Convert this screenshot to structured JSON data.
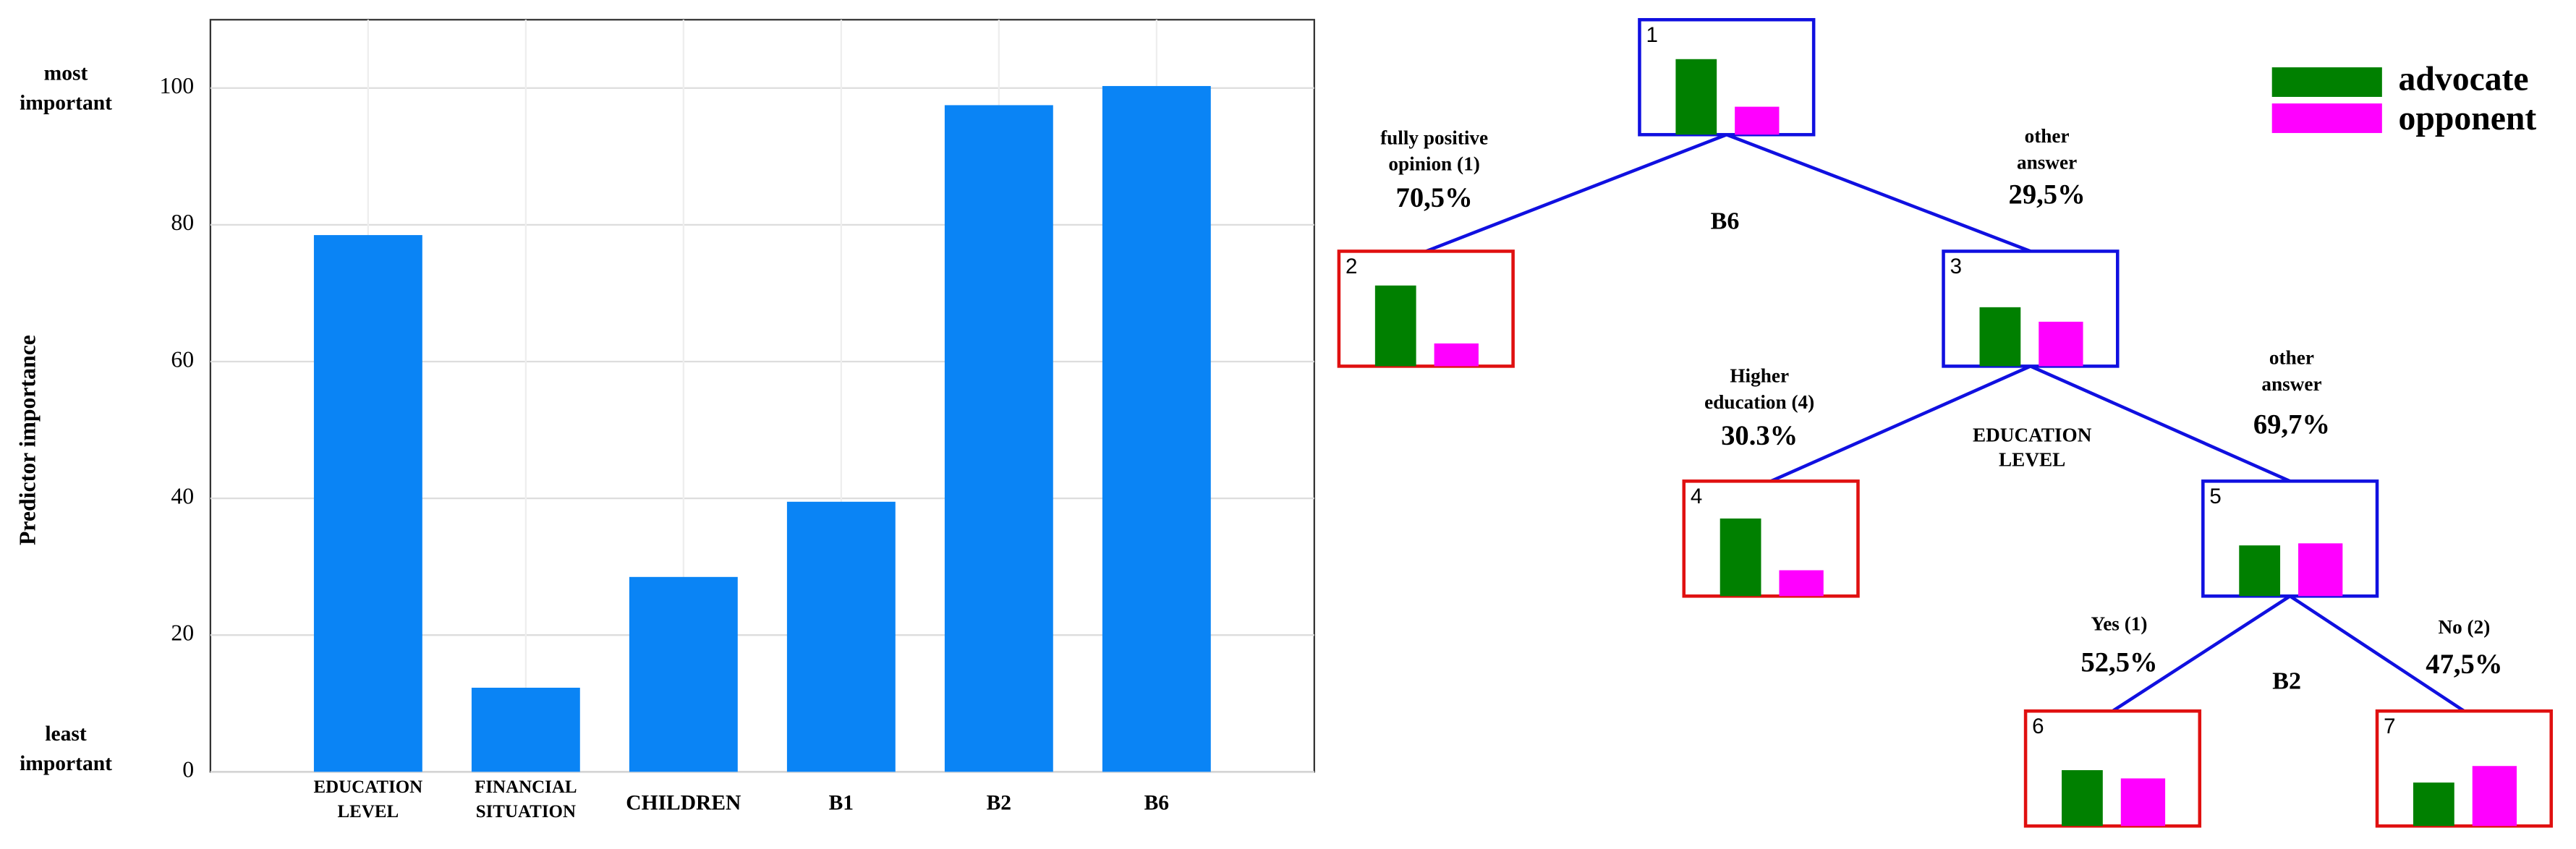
{
  "chart_data": {
    "type": "bar",
    "y_label": "Predictor importance",
    "top_note": [
      "most",
      "important"
    ],
    "bottom_note": [
      "least",
      "important"
    ],
    "categories": [
      "EDUCATION LEVEL",
      "FINANCIAL SITUATION",
      "CHILDREN",
      "B1",
      "B2",
      "B6"
    ],
    "values": [
      78.5,
      12.3,
      28.5,
      39.5,
      97.5,
      100.3
    ],
    "color": "#0a84f5",
    "ylim": [
      0,
      110
    ],
    "yticks": [
      0,
      20,
      40,
      60,
      80,
      100
    ],
    "grid": true
  },
  "tree": {
    "legend": [
      {
        "name": "advocate",
        "color": "#008000"
      },
      {
        "name": "opponent",
        "color": "#ff00ff"
      }
    ],
    "nodes": [
      {
        "id": "1",
        "kind": "split",
        "values": [
          73,
          27
        ]
      },
      {
        "id": "2",
        "kind": "leaf",
        "values": [
          78,
          22
        ]
      },
      {
        "id": "3",
        "kind": "split",
        "values": [
          57,
          43
        ]
      },
      {
        "id": "4",
        "kind": "leaf",
        "values": [
          75,
          25
        ]
      },
      {
        "id": "5",
        "kind": "split",
        "values": [
          49,
          51
        ]
      },
      {
        "id": "6",
        "kind": "leaf",
        "values": [
          54,
          46
        ]
      },
      {
        "id": "7",
        "kind": "leaf",
        "values": [
          42,
          58
        ]
      }
    ],
    "splits": [
      [
        "B6"
      ],
      [
        "EDUCATION",
        "LEVEL"
      ],
      [
        "B2"
      ]
    ],
    "edges": [
      {
        "label": [
          "fully positive",
          "opinion (1)"
        ],
        "share": "70,5%"
      },
      {
        "label": [
          "other",
          "answer"
        ],
        "share": "29,5%"
      },
      {
        "label": [
          "Higher",
          "education (4)"
        ],
        "share": "30.3%"
      },
      {
        "label": [
          "other",
          "answer"
        ],
        "share": "69,7%"
      },
      {
        "label": [
          "Yes (1)"
        ],
        "share": "52,5%"
      },
      {
        "label": [
          "No (2)"
        ],
        "share": "47,5%"
      }
    ]
  }
}
